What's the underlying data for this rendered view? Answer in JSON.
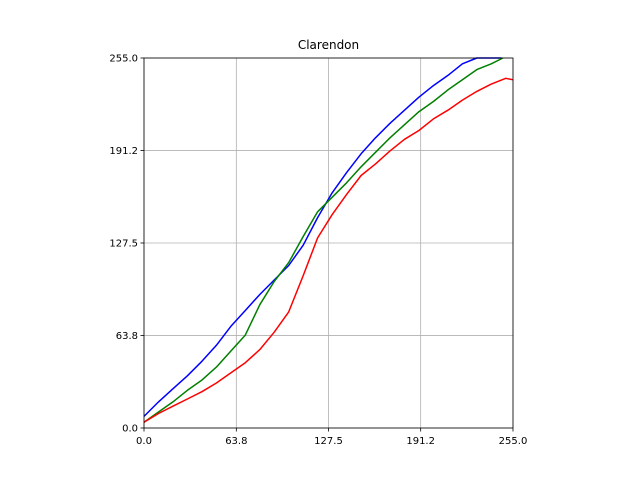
{
  "chart_data": {
    "type": "line",
    "title": "Clarendon",
    "xlabel": "",
    "ylabel": "",
    "xlim": [
      0,
      255
    ],
    "ylim": [
      0,
      255
    ],
    "grid": true,
    "xticks": [
      0.0,
      63.8,
      127.5,
      191.2,
      255.0
    ],
    "yticks": [
      0.0,
      63.8,
      127.5,
      191.2,
      255.0
    ],
    "xtick_labels": [
      "0.0",
      "63.8",
      "127.5",
      "191.2",
      "255.0"
    ],
    "ytick_labels": [
      "0.0",
      "63.8",
      "127.5",
      "191.2",
      "255.0"
    ],
    "series": [
      {
        "color": "#0000ff",
        "x": [
          0,
          10,
          20,
          30,
          40,
          50,
          60,
          70,
          80,
          90,
          100,
          110,
          120,
          130,
          140,
          150,
          160,
          170,
          180,
          190,
          200,
          210,
          220,
          230,
          240,
          247
        ],
        "y": [
          8,
          18,
          27,
          36,
          46,
          57,
          70,
          81,
          92,
          102,
          112,
          126,
          145,
          162,
          176,
          189,
          200,
          210,
          219,
          228,
          236,
          243,
          251,
          255,
          255,
          255
        ]
      },
      {
        "color": "#008000",
        "x": [
          0,
          10,
          20,
          30,
          40,
          50,
          60,
          70,
          80,
          90,
          100,
          110,
          120,
          130,
          140,
          150,
          160,
          170,
          180,
          190,
          200,
          210,
          220,
          230,
          240,
          248
        ],
        "y": [
          4,
          11,
          18,
          26,
          33,
          42,
          53,
          64,
          85,
          101,
          114,
          132,
          149,
          159,
          169,
          180,
          190,
          200,
          209,
          218,
          225,
          233,
          240,
          247,
          251,
          255
        ]
      },
      {
        "color": "#ff0000",
        "x": [
          0,
          10,
          20,
          30,
          40,
          50,
          60,
          70,
          80,
          90,
          100,
          110,
          120,
          130,
          140,
          150,
          160,
          170,
          180,
          190,
          200,
          210,
          220,
          230,
          240,
          250,
          255
        ],
        "y": [
          4,
          10,
          15,
          20,
          25,
          31,
          38,
          45,
          54,
          66,
          80,
          105,
          131,
          147,
          161,
          174,
          182,
          191,
          199,
          205,
          213,
          219,
          226,
          232,
          237,
          241,
          240
        ]
      }
    ]
  }
}
